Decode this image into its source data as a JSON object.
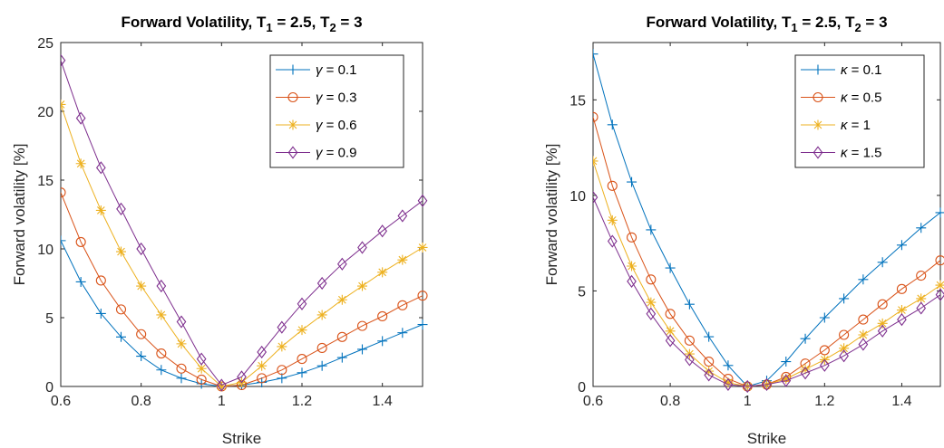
{
  "chart_data": [
    {
      "type": "line",
      "title": "Forward Volatility, T",
      "title_sub1": "1",
      "title_mid": " = 2.5, T",
      "title_sub2": "2",
      "title_end": " = 3",
      "xlabel": "Strike",
      "ylabel": "Forward volatility [%]",
      "xlim": [
        0.6,
        1.5
      ],
      "ylim": [
        0,
        25
      ],
      "xticks": [
        0.6,
        0.8,
        1,
        1.2,
        1.4
      ],
      "xtick_labels": [
        "0.6",
        "0.8",
        "1",
        "1.2",
        "1.4"
      ],
      "yticks": [
        0,
        5,
        10,
        15,
        20,
        25
      ],
      "ytick_labels": [
        "0",
        "5",
        "10",
        "15",
        "20",
        "25"
      ],
      "legend_position": "top-right",
      "x": [
        0.6,
        0.65,
        0.7,
        0.75,
        0.8,
        0.85,
        0.9,
        0.95,
        1.0,
        1.05,
        1.1,
        1.15,
        1.2,
        1.25,
        1.3,
        1.35,
        1.4,
        1.45,
        1.5
      ],
      "series": [
        {
          "name": "γ = 0.1",
          "greek": "γ",
          "value_text": " = 0.1",
          "marker": "plus",
          "color": "#0072BD",
          "values": [
            10.6,
            7.6,
            5.3,
            3.6,
            2.2,
            1.2,
            0.6,
            0.2,
            0.0,
            0.1,
            0.3,
            0.6,
            1.0,
            1.5,
            2.1,
            2.7,
            3.3,
            3.9,
            4.5
          ]
        },
        {
          "name": "γ = 0.3",
          "greek": "γ",
          "value_text": " = 0.3",
          "marker": "circle",
          "color": "#D95319",
          "values": [
            14.1,
            10.5,
            7.7,
            5.6,
            3.8,
            2.4,
            1.3,
            0.5,
            0.0,
            0.1,
            0.6,
            1.2,
            2.0,
            2.8,
            3.6,
            4.4,
            5.1,
            5.9,
            6.6
          ]
        },
        {
          "name": "γ = 0.6",
          "greek": "γ",
          "value_text": " = 0.6",
          "marker": "asterisk",
          "color": "#EDB120",
          "values": [
            20.5,
            16.2,
            12.8,
            9.8,
            7.3,
            5.2,
            3.1,
            1.3,
            0.0,
            0.3,
            1.5,
            2.9,
            4.1,
            5.2,
            6.3,
            7.3,
            8.3,
            9.2,
            10.1
          ]
        },
        {
          "name": "γ = 0.9",
          "greek": "γ",
          "value_text": " = 0.9",
          "marker": "diamond",
          "color": "#7E2F8E",
          "values": [
            23.7,
            19.5,
            15.9,
            12.9,
            10.0,
            7.3,
            4.7,
            2.0,
            0.1,
            0.7,
            2.5,
            4.3,
            6.0,
            7.5,
            8.9,
            10.1,
            11.3,
            12.4,
            13.5
          ]
        }
      ]
    },
    {
      "type": "line",
      "title": "Forward Volatility, T",
      "title_sub1": "1",
      "title_mid": " = 2.5, T",
      "title_sub2": "2",
      "title_end": " = 3",
      "xlabel": "Strike",
      "ylabel": "Forward volatility [%]",
      "xlim": [
        0.6,
        1.5
      ],
      "ylim": [
        0,
        18
      ],
      "xticks": [
        0.6,
        0.8,
        1,
        1.2,
        1.4
      ],
      "xtick_labels": [
        "0.6",
        "0.8",
        "1",
        "1.2",
        "1.4"
      ],
      "yticks": [
        0,
        5,
        10,
        15
      ],
      "ytick_labels": [
        "0",
        "5",
        "10",
        "15"
      ],
      "legend_position": "top-right",
      "x": [
        0.6,
        0.65,
        0.7,
        0.75,
        0.8,
        0.85,
        0.9,
        0.95,
        1.0,
        1.05,
        1.1,
        1.15,
        1.2,
        1.25,
        1.3,
        1.35,
        1.4,
        1.45,
        1.5
      ],
      "series": [
        {
          "name": "κ = 0.1",
          "greek": "κ",
          "value_text": " = 0.1",
          "marker": "plus",
          "color": "#0072BD",
          "values": [
            17.4,
            13.7,
            10.7,
            8.2,
            6.2,
            4.3,
            2.6,
            1.1,
            0.0,
            0.3,
            1.3,
            2.5,
            3.6,
            4.6,
            5.6,
            6.5,
            7.4,
            8.3,
            9.1
          ]
        },
        {
          "name": "κ = 0.5",
          "greek": "κ",
          "value_text": " = 0.5",
          "marker": "circle",
          "color": "#D95319",
          "values": [
            14.1,
            10.5,
            7.8,
            5.6,
            3.8,
            2.4,
            1.3,
            0.4,
            0.0,
            0.1,
            0.5,
            1.2,
            1.9,
            2.7,
            3.5,
            4.3,
            5.1,
            5.8,
            6.6
          ]
        },
        {
          "name": "κ = 1",
          "greek": "κ",
          "value_text": " = 1",
          "marker": "asterisk",
          "color": "#EDB120",
          "values": [
            11.8,
            8.7,
            6.3,
            4.4,
            2.9,
            1.7,
            0.8,
            0.2,
            0.0,
            0.1,
            0.4,
            0.9,
            1.4,
            2.0,
            2.7,
            3.3,
            4.0,
            4.6,
            5.3
          ]
        },
        {
          "name": "κ = 1.5",
          "greek": "κ",
          "value_text": " = 1.5",
          "marker": "diamond",
          "color": "#7E2F8E",
          "values": [
            9.9,
            7.6,
            5.5,
            3.8,
            2.4,
            1.4,
            0.6,
            0.1,
            0.0,
            0.1,
            0.3,
            0.7,
            1.1,
            1.6,
            2.2,
            2.9,
            3.5,
            4.1,
            4.8
          ]
        }
      ]
    }
  ]
}
